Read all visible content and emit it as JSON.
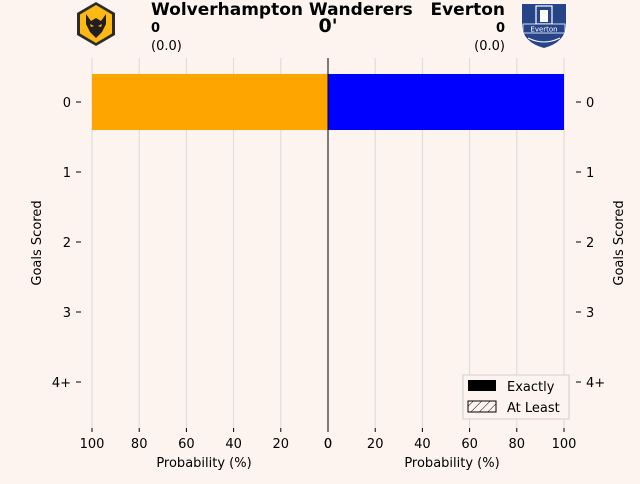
{
  "header": {
    "home_team": "Wolverhampton Wanderers",
    "away_team": "Everton",
    "home_score": "0",
    "away_score": "0",
    "home_xg": "(0.0)",
    "away_xg": "(0.0)",
    "minute": "0'"
  },
  "logos": {
    "home_icon": "wolf-crest-icon",
    "away_icon": "toffee-tower-crest-icon",
    "away_text": "Everton"
  },
  "colors": {
    "background": "#fdf4ef",
    "home": "#ffa500",
    "away": "#0000ff",
    "grid": "#d9d9d9"
  },
  "chart_data": {
    "type": "bar",
    "orientation": "horizontal-mirrored",
    "categories": [
      "0",
      "1",
      "2",
      "3",
      "4+"
    ],
    "series": [
      {
        "name": "Wolverhampton Wanderers",
        "side": "left",
        "exactly": [
          100,
          0,
          0,
          0,
          0
        ],
        "at_least": [
          100,
          0,
          0,
          0,
          0
        ]
      },
      {
        "name": "Everton",
        "side": "right",
        "exactly": [
          100,
          0,
          0,
          0,
          0
        ],
        "at_least": [
          100,
          0,
          0,
          0,
          0
        ]
      }
    ],
    "xlabel_left": "Probability (%)",
    "xlabel_right": "Probability (%)",
    "ylabel_left": "Goals Scored",
    "ylabel_right": "Goals Scored",
    "xticks": [
      "100",
      "80",
      "60",
      "40",
      "20",
      "0"
    ],
    "xticks_right": [
      "0",
      "20",
      "40",
      "60",
      "80",
      "100"
    ],
    "xlim": [
      0,
      100
    ],
    "grid": true,
    "legend": {
      "position": "bottom-right",
      "items": [
        {
          "label": "Exactly",
          "style": "solid"
        },
        {
          "label": "At Least",
          "style": "hatched"
        }
      ]
    }
  }
}
